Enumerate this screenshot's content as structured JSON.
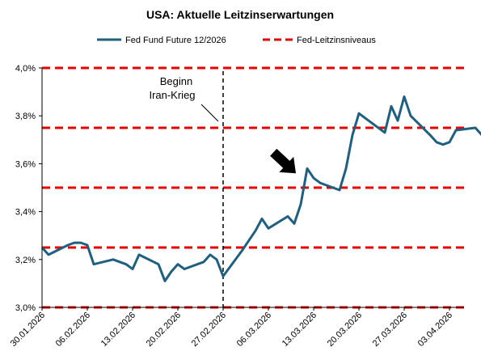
{
  "chart_data": {
    "type": "line",
    "title": "USA: Aktuelle Leitzinserwartungen",
    "xlabel": "",
    "ylabel": "",
    "ylim": [
      3.0,
      4.0
    ],
    "yticks": [
      "3,0%",
      "3,2%",
      "3,4%",
      "3,6%",
      "3,8%",
      "4,0%"
    ],
    "xticks": [
      "30.01.2026",
      "06.02.2026",
      "13.02.2026",
      "20.02.2026",
      "27.02.2026",
      "06.03.2026",
      "13.03.2026",
      "20.03.2026",
      "27.03.2026",
      "03.04.2026"
    ],
    "grid": false,
    "legend_position": "top",
    "series": [
      {
        "name": "Fed Fund Future 12/2026",
        "color": "#1f5f7f",
        "style": "solid",
        "x": [
          "2026-01-30",
          "2026-01-31",
          "2026-02-03",
          "2026-02-04",
          "2026-02-05",
          "2026-02-06",
          "2026-02-07",
          "2026-02-10",
          "2026-02-11",
          "2026-02-12",
          "2026-02-13",
          "2026-02-14",
          "2026-02-17",
          "2026-02-18",
          "2026-02-19",
          "2026-02-20",
          "2026-02-21",
          "2026-02-24",
          "2026-02-25",
          "2026-02-26",
          "2026-02-27",
          "2026-03-02",
          "2026-03-03",
          "2026-03-04",
          "2026-03-05",
          "2026-03-06",
          "2026-03-09",
          "2026-03-10",
          "2026-03-11",
          "2026-03-12",
          "2026-03-13",
          "2026-03-14",
          "2026-03-17",
          "2026-03-18",
          "2026-03-19",
          "2026-03-20",
          "2026-03-21",
          "2026-03-24",
          "2026-03-25",
          "2026-03-26",
          "2026-03-27",
          "2026-03-28",
          "2026-03-31",
          "2026-04-01",
          "2026-04-02",
          "2026-04-03",
          "2026-04-04",
          "2026-04-07",
          "2026-04-08"
        ],
        "values": [
          3.25,
          3.22,
          3.26,
          3.27,
          3.27,
          3.26,
          3.18,
          3.2,
          3.19,
          3.18,
          3.16,
          3.22,
          3.18,
          3.11,
          3.15,
          3.18,
          3.16,
          3.19,
          3.22,
          3.2,
          3.13,
          3.24,
          3.28,
          3.32,
          3.37,
          3.33,
          3.38,
          3.35,
          3.43,
          3.58,
          3.54,
          3.52,
          3.49,
          3.58,
          3.72,
          3.81,
          3.79,
          3.73,
          3.84,
          3.78,
          3.88,
          3.8,
          3.72,
          3.69,
          3.68,
          3.69,
          3.74,
          3.75,
          3.72
        ]
      }
    ],
    "legend_levels_name": "Fed-Leitzinsniveaus",
    "levels": [
      3.0,
      3.25,
      3.5,
      3.75,
      4.0
    ],
    "level_color": "#e60000",
    "event": {
      "date": "2026-02-27",
      "label_line1": "Beginn",
      "label_line2": "Iran-Krieg"
    },
    "arrow_date": "2026-03-11",
    "arrow_value": 3.56
  }
}
